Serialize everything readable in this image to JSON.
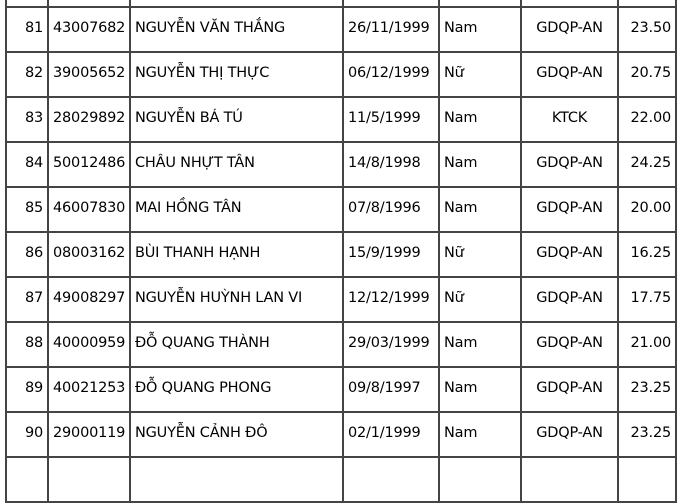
{
  "rows": [
    {
      "stt": "81",
      "sbd": "43007682",
      "name": "NGUYỄN VĂN THẮNG",
      "dob": "26/11/1999",
      "sex": "Nam",
      "major": "GDQP-AN",
      "score": "23.50"
    },
    {
      "stt": "82",
      "sbd": "39005652",
      "name": "NGUYỄN THỊ THỰC",
      "dob": "06/12/1999",
      "sex": "Nữ",
      "major": "GDQP-AN",
      "score": "20.75"
    },
    {
      "stt": "83",
      "sbd": "28029892",
      "name": "NGUYỄN BÁ TÚ",
      "dob": "11/5/1999",
      "sex": "Nam",
      "major": "KTCK",
      "score": "22.00"
    },
    {
      "stt": "84",
      "sbd": "50012486",
      "name": "CHÂU NHỰT TÂN",
      "dob": "14/8/1998",
      "sex": "Nam",
      "major": "GDQP-AN",
      "score": "24.25"
    },
    {
      "stt": "85",
      "sbd": "46007830",
      "name": "MAI HỒNG TÂN",
      "dob": "07/8/1996",
      "sex": "Nam",
      "major": "GDQP-AN",
      "score": "20.00"
    },
    {
      "stt": "86",
      "sbd": "08003162",
      "name": "BÙI THANH HẠNH",
      "dob": "15/9/1999",
      "sex": "Nữ",
      "major": "GDQP-AN",
      "score": "16.25"
    },
    {
      "stt": "87",
      "sbd": "49008297",
      "name": "NGUYỄN HUỲNH LAN VI",
      "dob": "12/12/1999",
      "sex": "Nữ",
      "major": "GDQP-AN",
      "score": "17.75"
    },
    {
      "stt": "88",
      "sbd": "40000959",
      "name": "ĐỖ QUANG THÀNH",
      "dob": "29/03/1999",
      "sex": "Nam",
      "major": "GDQP-AN",
      "score": "21.00"
    },
    {
      "stt": "89",
      "sbd": "40021253",
      "name": "ĐỖ QUANG PHONG",
      "dob": "09/8/1997",
      "sex": "Nam",
      "major": "GDQP-AN",
      "score": "23.25"
    },
    {
      "stt": "90",
      "sbd": "29000119",
      "name": "NGUYỄN CẢNH ĐÔ",
      "dob": "02/1/1999",
      "sex": "Nam",
      "major": "GDQP-AN",
      "score": "23.25"
    }
  ]
}
